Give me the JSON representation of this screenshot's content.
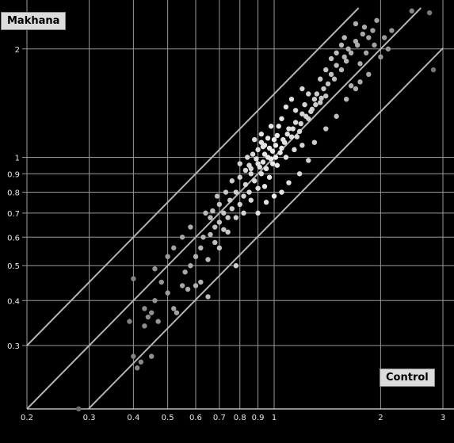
{
  "chart_data": {
    "type": "scatter",
    "title": "",
    "xlabel": "Control",
    "ylabel": "Makhana",
    "xscale": "log",
    "yscale": "log",
    "xlim": [
      0.2,
      3.0
    ],
    "ylim": [
      0.2,
      2.6
    ],
    "x_ticks": [
      0.2,
      0.3,
      0.4,
      0.5,
      0.6,
      0.7,
      0.8,
      0.9,
      1,
      2,
      3
    ],
    "x_tick_labels": [
      "0.2",
      "0.3",
      "0.4",
      "0.5",
      "0.6",
      "0.7",
      "0.8",
      "0.9",
      "1",
      "2",
      "3"
    ],
    "y_ticks": [
      0.3,
      0.4,
      0.5,
      0.6,
      0.7,
      0.8,
      0.9,
      1,
      2
    ],
    "y_tick_labels": [
      "0.3",
      "0.4",
      "0.5",
      "0.6",
      "0.7",
      "0.8",
      "0.9",
      "1",
      "2"
    ],
    "grid": true,
    "reference_lines": [
      {
        "slope": 1,
        "factor": 1.5
      },
      {
        "slope": 1,
        "factor": 1.0
      },
      {
        "slope": 1,
        "factor": 0.67
      }
    ],
    "points": [
      [
        0.28,
        0.2
      ],
      [
        0.4,
        0.28
      ],
      [
        0.41,
        0.26
      ],
      [
        0.42,
        0.27
      ],
      [
        0.45,
        0.28
      ],
      [
        0.39,
        0.35
      ],
      [
        0.45,
        0.37
      ],
      [
        0.44,
        0.36
      ],
      [
        0.43,
        0.34
      ],
      [
        0.47,
        0.35
      ],
      [
        0.4,
        0.46
      ],
      [
        0.46,
        0.49
      ],
      [
        0.5,
        0.42
      ],
      [
        0.52,
        0.38
      ],
      [
        0.53,
        0.37
      ],
      [
        0.55,
        0.44
      ],
      [
        0.57,
        0.43
      ],
      [
        0.56,
        0.48
      ],
      [
        0.58,
        0.5
      ],
      [
        0.6,
        0.44
      ],
      [
        0.62,
        0.45
      ],
      [
        0.6,
        0.53
      ],
      [
        0.62,
        0.56
      ],
      [
        0.65,
        0.52
      ],
      [
        0.63,
        0.6
      ],
      [
        0.66,
        0.61
      ],
      [
        0.68,
        0.58
      ],
      [
        0.7,
        0.56
      ],
      [
        0.72,
        0.63
      ],
      [
        0.65,
        0.41
      ],
      [
        0.66,
        0.68
      ],
      [
        0.67,
        0.71
      ],
      [
        0.7,
        0.74
      ],
      [
        0.72,
        0.7
      ],
      [
        0.74,
        0.68
      ],
      [
        0.75,
        0.76
      ],
      [
        0.76,
        0.72
      ],
      [
        0.78,
        0.8
      ],
      [
        0.8,
        0.74
      ],
      [
        0.82,
        0.78
      ],
      [
        0.83,
        0.84
      ],
      [
        0.85,
        0.8
      ],
      [
        0.78,
        0.5
      ],
      [
        0.8,
        0.88
      ],
      [
        0.83,
        0.92
      ],
      [
        0.85,
        0.95
      ],
      [
        0.86,
        0.9
      ],
      [
        0.88,
        0.86
      ],
      [
        0.9,
        0.82
      ],
      [
        0.92,
        0.9
      ],
      [
        0.93,
        0.97
      ],
      [
        0.95,
        0.93
      ],
      [
        0.97,
        0.88
      ],
      [
        0.98,
        0.99
      ],
      [
        0.87,
        1.02
      ],
      [
        0.9,
        1.05
      ],
      [
        0.92,
        1.1
      ],
      [
        0.94,
        1.08
      ],
      [
        0.96,
        1.0
      ],
      [
        0.99,
        1.04
      ],
      [
        1.0,
        1.12
      ],
      [
        1.02,
        1.15
      ],
      [
        1.05,
        1.06
      ],
      [
        1.07,
        1.1
      ],
      [
        1.1,
        1.2
      ],
      [
        1.12,
        1.14
      ],
      [
        1.15,
        1.25
      ],
      [
        1.18,
        1.18
      ],
      [
        1.2,
        1.32
      ],
      [
        1.22,
        1.4
      ],
      [
        1.25,
        1.28
      ],
      [
        1.28,
        1.36
      ],
      [
        1.3,
        1.45
      ],
      [
        1.32,
        1.5
      ],
      [
        1.35,
        1.42
      ],
      [
        1.38,
        1.55
      ],
      [
        1.4,
        1.48
      ],
      [
        1.42,
        1.6
      ],
      [
        1.45,
        1.7
      ],
      [
        1.48,
        1.65
      ],
      [
        1.5,
        1.8
      ],
      [
        1.55,
        1.75
      ],
      [
        1.58,
        1.9
      ],
      [
        1.6,
        1.85
      ],
      [
        1.62,
        2.0
      ],
      [
        1.65,
        1.95
      ],
      [
        1.7,
        2.1
      ],
      [
        1.72,
        2.05
      ],
      [
        1.75,
        1.82
      ],
      [
        1.78,
        2.2
      ],
      [
        1.8,
        2.3
      ],
      [
        1.85,
        2.15
      ],
      [
        1.9,
        2.25
      ],
      [
        1.95,
        2.4
      ],
      [
        1.25,
        0.98
      ],
      [
        1.18,
        0.9
      ],
      [
        1.1,
        0.85
      ],
      [
        1.05,
        0.8
      ],
      [
        1.0,
        0.78
      ],
      [
        0.95,
        0.75
      ],
      [
        1.3,
        1.1
      ],
      [
        1.4,
        1.2
      ],
      [
        1.5,
        1.3
      ],
      [
        1.6,
        1.45
      ],
      [
        1.7,
        1.55
      ],
      [
        1.85,
        1.7
      ],
      [
        2.0,
        1.9
      ],
      [
        2.1,
        2.0
      ],
      [
        1.15,
        1.35
      ],
      [
        1.05,
        1.28
      ],
      [
        0.98,
        1.22
      ],
      [
        1.25,
        1.5
      ],
      [
        1.35,
        1.65
      ],
      [
        1.45,
        1.88
      ],
      [
        1.55,
        2.05
      ],
      [
        1.7,
        2.35
      ],
      [
        2.45,
        2.55
      ],
      [
        2.75,
        2.52
      ],
      [
        2.82,
        1.75
      ],
      [
        2.15,
        2.25
      ],
      [
        1.2,
        1.55
      ],
      [
        1.12,
        1.45
      ],
      [
        1.08,
        1.38
      ],
      [
        0.92,
        1.16
      ],
      [
        0.88,
        1.12
      ],
      [
        0.84,
        1.0
      ],
      [
        0.8,
        0.96
      ],
      [
        0.76,
        0.86
      ],
      [
        0.73,
        0.8
      ],
      [
        0.69,
        0.78
      ],
      [
        0.64,
        0.7
      ],
      [
        0.58,
        0.64
      ],
      [
        0.55,
        0.6
      ],
      [
        0.52,
        0.56
      ],
      [
        0.5,
        0.53
      ],
      [
        0.48,
        0.45
      ],
      [
        0.46,
        0.4
      ],
      [
        0.43,
        0.38
      ],
      [
        1.02,
        0.95
      ],
      [
        1.08,
        1.0
      ],
      [
        1.14,
        1.05
      ],
      [
        1.2,
        1.08
      ],
      [
        0.96,
        1.13
      ],
      [
        1.03,
        1.22
      ],
      [
        1.4,
        1.75
      ],
      [
        1.5,
        1.95
      ],
      [
        1.58,
        2.15
      ],
      [
        1.65,
        1.58
      ],
      [
        1.75,
        1.62
      ],
      [
        1.82,
        1.95
      ],
      [
        1.92,
        2.05
      ],
      [
        2.05,
        2.15
      ],
      [
        0.82,
        0.7
      ],
      [
        0.86,
        0.76
      ],
      [
        0.9,
        0.7
      ],
      [
        0.94,
        0.83
      ],
      [
        0.78,
        0.68
      ],
      [
        0.74,
        0.62
      ],
      [
        0.7,
        0.66
      ],
      [
        0.68,
        0.64
      ],
      [
        0.9,
        0.96
      ],
      [
        0.94,
        1.02
      ],
      [
        0.97,
        1.06
      ],
      [
        1.01,
        1.0
      ],
      [
        1.04,
        1.03
      ],
      [
        1.06,
        1.12
      ],
      [
        1.09,
        1.16
      ],
      [
        1.13,
        1.2
      ],
      [
        1.16,
        1.14
      ],
      [
        1.19,
        1.24
      ],
      [
        1.23,
        1.3
      ],
      [
        1.27,
        1.34
      ],
      [
        1.31,
        1.4
      ],
      [
        1.36,
        1.46
      ],
      [
        0.86,
        0.93
      ],
      [
        0.89,
        0.99
      ],
      [
        0.91,
        0.94
      ],
      [
        0.93,
        1.07
      ],
      [
        0.99,
        0.96
      ],
      [
        1.01,
        1.08
      ]
    ]
  }
}
